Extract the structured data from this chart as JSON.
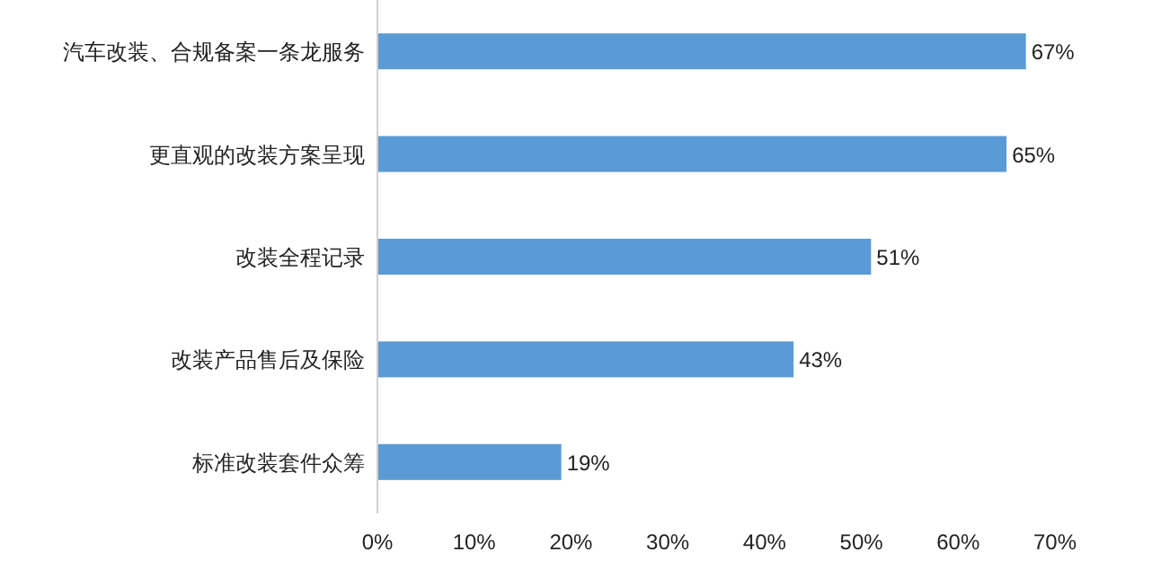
{
  "chart_data": {
    "type": "bar",
    "orientation": "horizontal",
    "categories": [
      "汽车改装、合规备案一条龙服务",
      "更直观的改装方案呈现",
      "改装全程记录",
      "改装产品售后及保险",
      "标准改装套件众筹"
    ],
    "values": [
      67,
      65,
      51,
      43,
      19
    ],
    "value_labels": [
      "67%",
      "65%",
      "51%",
      "43%",
      "19%"
    ],
    "color": "#5b9bd5",
    "xlim": [
      0,
      70
    ],
    "xticks": [
      {
        "value": 0,
        "label": "0%"
      },
      {
        "value": 10,
        "label": "10%"
      },
      {
        "value": 20,
        "label": "20%"
      },
      {
        "value": 30,
        "label": "30%"
      },
      {
        "value": 40,
        "label": "40%"
      },
      {
        "value": 50,
        "label": "50%"
      },
      {
        "value": 60,
        "label": "60%"
      },
      {
        "value": 70,
        "label": "70%"
      }
    ]
  }
}
